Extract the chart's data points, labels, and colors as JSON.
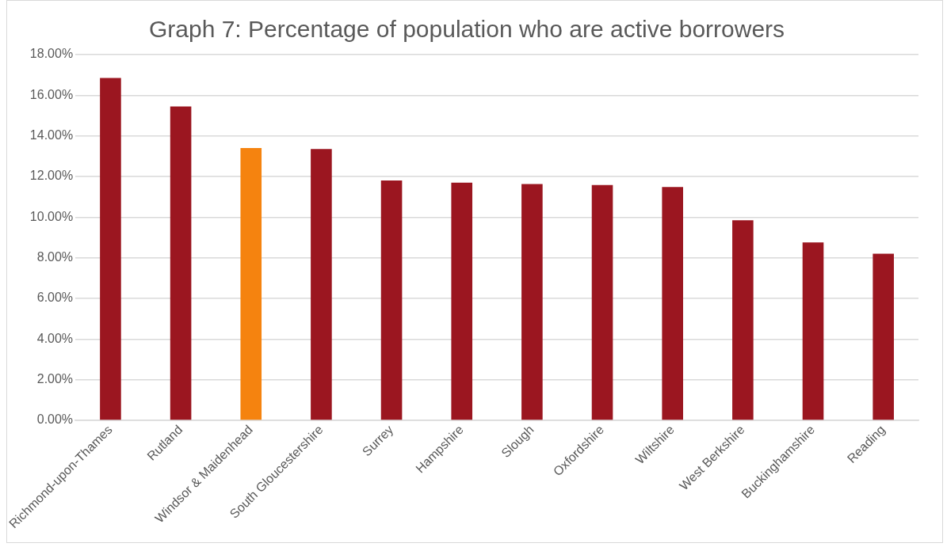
{
  "chart_data": {
    "type": "bar",
    "title": "Graph 7: Percentage of population who are active borrowers",
    "categories": [
      "Richmond-upon-Thames",
      "Rutland",
      "Windsor & Maidenhead",
      "South Gloucestershire",
      "Surrey",
      "Hampshire",
      "Slough",
      "Oxfordshire",
      "Wiltshire",
      "West Berkshire",
      "Buckinghamshire",
      "Reading"
    ],
    "values": [
      16.85,
      15.45,
      13.4,
      13.35,
      11.8,
      11.7,
      11.63,
      11.58,
      11.48,
      9.85,
      8.75,
      8.2
    ],
    "colors": [
      "#9b1620",
      "#9b1620",
      "#f5830f",
      "#9b1620",
      "#9b1620",
      "#9b1620",
      "#9b1620",
      "#9b1620",
      "#9b1620",
      "#9b1620",
      "#9b1620",
      "#9b1620"
    ],
    "ylim": [
      0,
      18
    ],
    "yticks": [
      {
        "value": 0,
        "label": "0.00%"
      },
      {
        "value": 2,
        "label": "2.00%"
      },
      {
        "value": 4,
        "label": "4.00%"
      },
      {
        "value": 6,
        "label": "6.00%"
      },
      {
        "value": 8,
        "label": "8.00%"
      },
      {
        "value": 10,
        "label": "10.00%"
      },
      {
        "value": 12,
        "label": "12.00%"
      },
      {
        "value": 14,
        "label": "14.00%"
      },
      {
        "value": 16,
        "label": "16.00%"
      },
      {
        "value": 18,
        "label": "18.00%"
      }
    ],
    "grid": "y"
  }
}
